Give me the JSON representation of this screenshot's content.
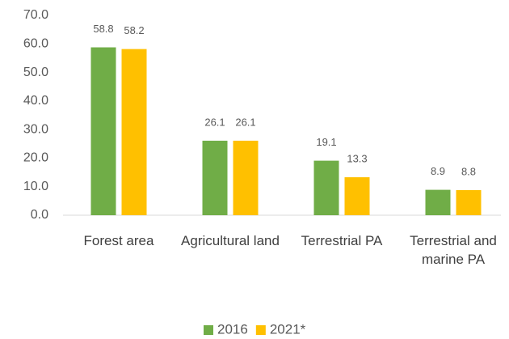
{
  "chart_data": {
    "type": "bar",
    "categories": [
      "Forest area",
      "Agricultural land",
      "Terrestrial PA",
      "Terrestrial and marine PA"
    ],
    "series": [
      {
        "name": "2016",
        "color": "#70ad47",
        "values": [
          58.8,
          26.1,
          19.1,
          8.9
        ]
      },
      {
        "name": "2021*",
        "color": "#ffc000",
        "values": [
          58.2,
          26.1,
          13.3,
          8.8
        ]
      }
    ],
    "ylim": [
      0,
      70
    ],
    "yticks": [
      {
        "value": 0,
        "label": "0.0"
      },
      {
        "value": 10,
        "label": "10.0"
      },
      {
        "value": 20,
        "label": "20.0"
      },
      {
        "value": 30,
        "label": "30.0"
      },
      {
        "value": 40,
        "label": "40.0"
      },
      {
        "value": 50,
        "label": "50.0"
      },
      {
        "value": 60,
        "label": "60.0"
      },
      {
        "value": 70,
        "label": "70.0"
      }
    ],
    "grid": false,
    "legend": "bottom"
  }
}
